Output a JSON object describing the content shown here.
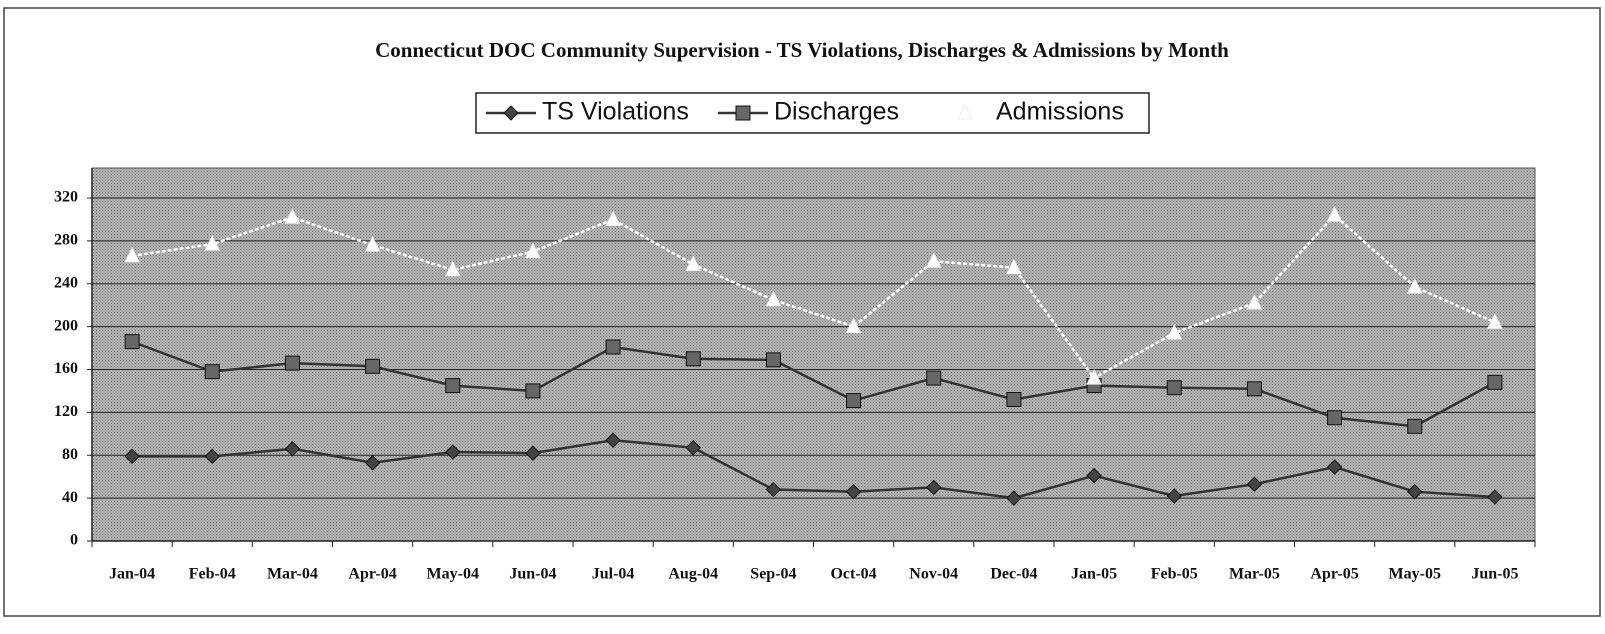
{
  "chart_data": {
    "type": "line",
    "title": "Connecticut DOC Community Supervision - TS Violations, Discharges & Admissions by Month",
    "categories": [
      "Jan-04",
      "Feb-04",
      "Mar-04",
      "Apr-04",
      "May-04",
      "Jun-04",
      "Jul-04",
      "Aug-04",
      "Sep-04",
      "Oct-04",
      "Nov-04",
      "Dec-04",
      "Jan-05",
      "Feb-05",
      "Mar-05",
      "Apr-05",
      "May-05",
      "Jun-05"
    ],
    "series": [
      {
        "name": "TS Violations",
        "color": "#333333",
        "marker": "diamond",
        "values": [
          79,
          79,
          86,
          73,
          83,
          82,
          94,
          87,
          48,
          46,
          50,
          40,
          61,
          42,
          53,
          69,
          46,
          41
        ]
      },
      {
        "name": "Discharges",
        "color": "#333333",
        "marker": "square",
        "values": [
          186,
          158,
          166,
          163,
          145,
          140,
          181,
          170,
          169,
          131,
          152,
          132,
          145,
          143,
          142,
          115,
          107,
          148
        ]
      },
      {
        "name": "Admissions",
        "color": "#ffffff",
        "marker": "triangle",
        "values": [
          266,
          277,
          302,
          276,
          253,
          270,
          300,
          258,
          225,
          200,
          261,
          255,
          152,
          194,
          222,
          304,
          237,
          204
        ]
      }
    ],
    "ylim": [
      0,
      348
    ],
    "yticks": [
      0,
      40,
      80,
      120,
      160,
      200,
      240,
      280,
      320
    ],
    "grid": true,
    "legend": "top"
  }
}
